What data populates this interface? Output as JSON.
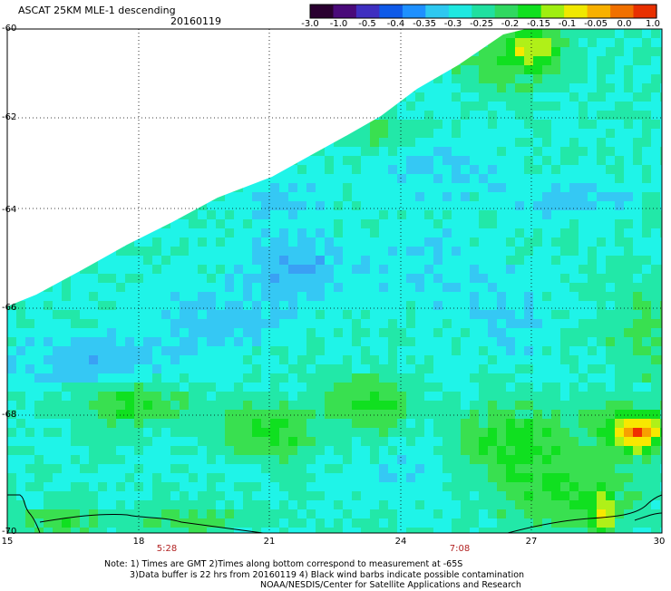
{
  "header": {
    "title": "ASCAT 25KM MLE-1 descending",
    "date": "20160119"
  },
  "colorbar": {
    "labels": [
      "-3.0",
      "-1.0",
      "-0.5",
      "-0.4",
      "-0.35",
      "-0.3",
      "-0.25",
      "-0.2",
      "-0.15",
      "-0.1",
      "-0.05",
      "0.0",
      "1.0"
    ],
    "colors": [
      "#2a0030",
      "#4a0a7a",
      "#3f2fc0",
      "#0f5ae8",
      "#1e90ff",
      "#2ec8f0",
      "#1ee8e0",
      "#20e0a0",
      "#30d860",
      "#10e020",
      "#a0ee10",
      "#f0e800",
      "#f8b000",
      "#f07000",
      "#e83000"
    ]
  },
  "axes": {
    "lat_labels": [
      "-60",
      "-62",
      "-64",
      "-66",
      "-68",
      "-70"
    ],
    "lon_labels": [
      "15",
      "18",
      "21",
      "24",
      "27",
      "30"
    ],
    "times": [
      "5:28",
      "7:08"
    ]
  },
  "field": {
    "colors": {
      "cyan": "#1ff4e8",
      "light_blue": "#35c8f4",
      "blue": "#3aa0f4",
      "deep_blue": "#1f60f0",
      "green_cyan": "#22e8a8",
      "green": "#39e050",
      "bright_green": "#10e020",
      "yellow_green": "#b0f018",
      "yellow": "#f8e800",
      "orange": "#f8a000",
      "red": "#f03000"
    }
  },
  "note": {
    "line1": "Note: 1) Times are GMT 2)Times along bottom correspond to measurement at -65S",
    "line2": "3)Data buffer is 22 hrs from 20160119 4) Black wind barbs indicate possible contamination",
    "line3": "NOAA/NESDIS/Center for Satellite Applications and Research"
  }
}
